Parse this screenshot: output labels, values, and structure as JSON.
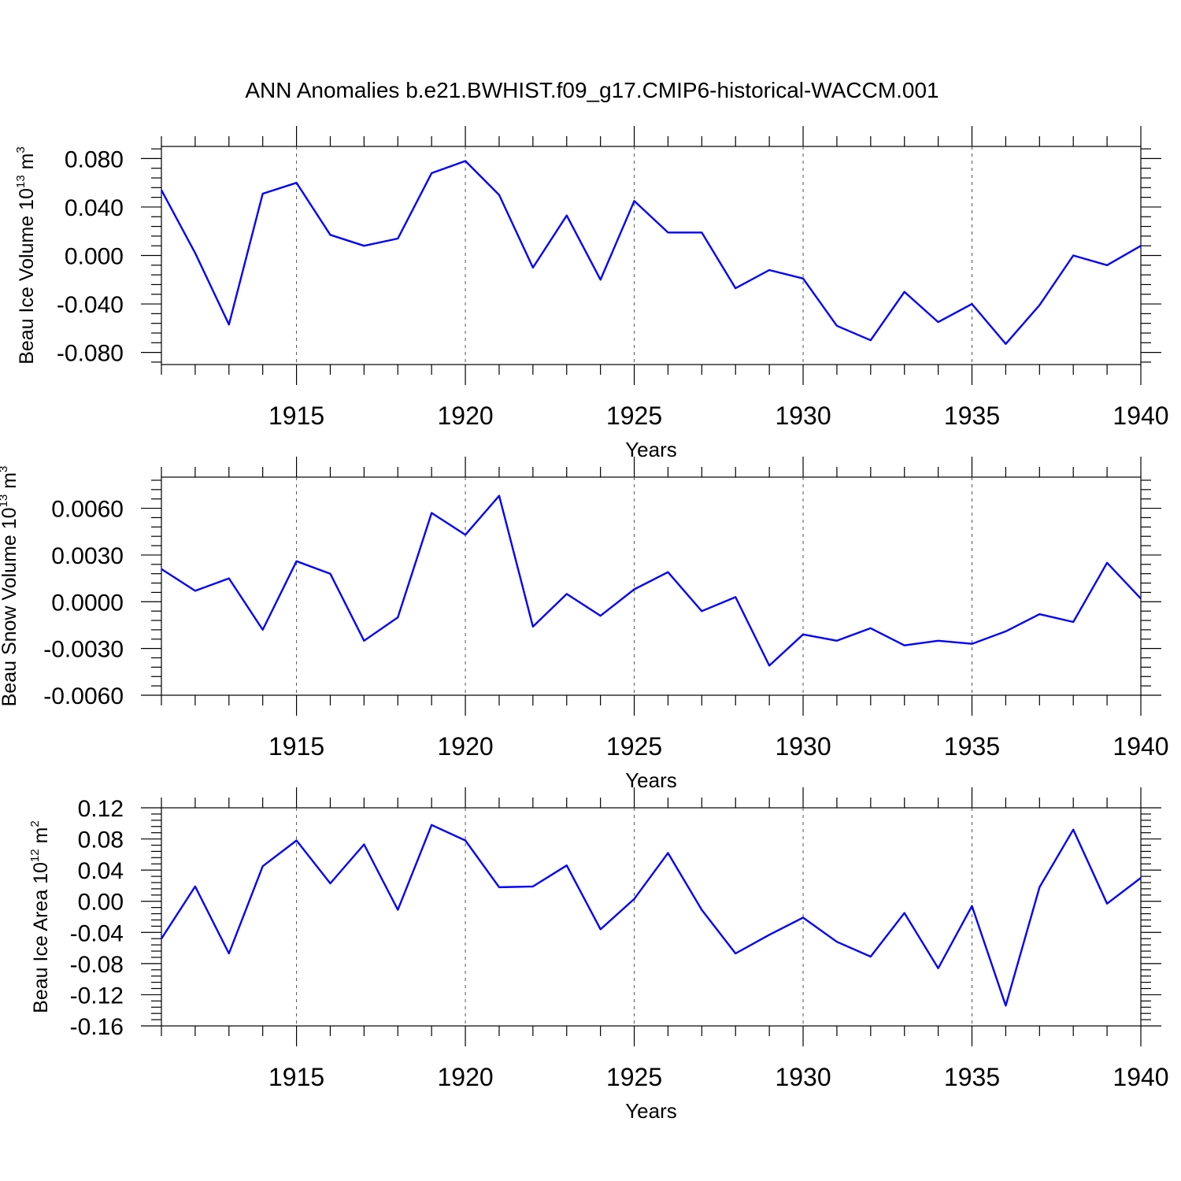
{
  "title": "ANN Anomalies b.e21.BWHIST.f09_g17.CMIP6-historical-WACCM.001",
  "colors": {
    "line": "#0000ff",
    "frame": "#000000",
    "grid": "#555555"
  },
  "chart_data": [
    {
      "type": "line",
      "xlabel": "Years",
      "ylabel": "Beau Ice Volume 10",
      "ylabel_sup1": "13",
      "ylabel_mid": " m",
      "ylabel_sup2": "3",
      "xlim": [
        1911,
        1940
      ],
      "ylim": [
        -0.09,
        0.09
      ],
      "xticks": [
        1915,
        1920,
        1925,
        1930,
        1935,
        1940
      ],
      "yticks": [
        0.08,
        0.04,
        0.0,
        -0.04,
        -0.08
      ],
      "ytick_labels": [
        "0.080",
        "0.040",
        "0.000",
        "-0.040",
        "-0.080"
      ],
      "grid": "vertical dashed at major x ticks",
      "x": [
        1911,
        1912,
        1913,
        1914,
        1915,
        1916,
        1917,
        1918,
        1919,
        1920,
        1921,
        1922,
        1923,
        1924,
        1925,
        1926,
        1927,
        1928,
        1929,
        1930,
        1931,
        1932,
        1933,
        1934,
        1935,
        1936,
        1937,
        1938,
        1939,
        1940
      ],
      "y": [
        0.054,
        0.002,
        -0.057,
        0.051,
        0.06,
        0.017,
        0.008,
        0.014,
        0.068,
        0.078,
        0.05,
        -0.01,
        0.033,
        -0.02,
        0.045,
        0.019,
        0.019,
        -0.027,
        -0.012,
        -0.019,
        -0.058,
        -0.07,
        -0.03,
        -0.055,
        -0.04,
        -0.073,
        -0.041,
        0.0,
        -0.008,
        0.008
      ]
    },
    {
      "type": "line",
      "xlabel": "Years",
      "ylabel": "Beau Snow Volume 10",
      "ylabel_sup1": "13",
      "ylabel_mid": " m",
      "ylabel_sup2": "3",
      "xlim": [
        1911,
        1940
      ],
      "ylim": [
        -0.006,
        0.008
      ],
      "xticks": [
        1915,
        1920,
        1925,
        1930,
        1935,
        1940
      ],
      "yticks": [
        0.006,
        0.003,
        0.0,
        -0.003,
        -0.006
      ],
      "ytick_labels": [
        "0.0060",
        "0.0030",
        "0.0000",
        "-0.0030",
        "-0.0060"
      ],
      "grid": "vertical dashed at major x ticks",
      "x": [
        1911,
        1912,
        1913,
        1914,
        1915,
        1916,
        1917,
        1918,
        1919,
        1920,
        1921,
        1922,
        1923,
        1924,
        1925,
        1926,
        1927,
        1928,
        1929,
        1930,
        1931,
        1932,
        1933,
        1934,
        1935,
        1936,
        1937,
        1938,
        1939,
        1940
      ],
      "y": [
        0.0021,
        0.0007,
        0.0015,
        -0.0018,
        0.0026,
        0.0018,
        -0.0025,
        -0.001,
        0.0057,
        0.0043,
        0.0068,
        -0.0016,
        0.0005,
        -0.0009,
        0.0008,
        0.0019,
        -0.0006,
        0.0003,
        -0.0041,
        -0.0021,
        -0.0025,
        -0.0017,
        -0.0028,
        -0.0025,
        -0.0027,
        -0.0019,
        -0.0008,
        -0.0013,
        0.0025,
        0.0002
      ]
    },
    {
      "type": "line",
      "xlabel": "Years",
      "ylabel": "Beau Ice Area 10",
      "ylabel_sup1": "12",
      "ylabel_mid": " m",
      "ylabel_sup2": "2",
      "xlim": [
        1911,
        1940
      ],
      "ylim": [
        -0.16,
        0.12
      ],
      "xticks": [
        1915,
        1920,
        1925,
        1930,
        1935,
        1940
      ],
      "yticks": [
        0.12,
        0.08,
        0.04,
        0.0,
        -0.04,
        -0.08,
        -0.12,
        -0.16
      ],
      "ytick_labels": [
        "0.12",
        "0.08",
        "0.04",
        "0.00",
        "-0.04",
        "-0.08",
        "-0.12",
        "-0.16"
      ],
      "grid": "vertical dashed at major x ticks",
      "x": [
        1911,
        1912,
        1913,
        1914,
        1915,
        1916,
        1917,
        1918,
        1919,
        1920,
        1921,
        1922,
        1923,
        1924,
        1925,
        1926,
        1927,
        1928,
        1929,
        1930,
        1931,
        1932,
        1933,
        1934,
        1935,
        1936,
        1937,
        1938,
        1939,
        1940
      ],
      "y": [
        -0.048,
        0.019,
        -0.067,
        0.045,
        0.078,
        0.023,
        0.073,
        -0.011,
        0.098,
        0.078,
        0.018,
        0.019,
        0.046,
        -0.036,
        0.003,
        0.062,
        -0.011,
        -0.067,
        -0.043,
        -0.021,
        -0.052,
        -0.071,
        -0.015,
        -0.086,
        -0.006,
        -0.134,
        0.018,
        0.092,
        -0.003,
        0.03
      ]
    }
  ]
}
